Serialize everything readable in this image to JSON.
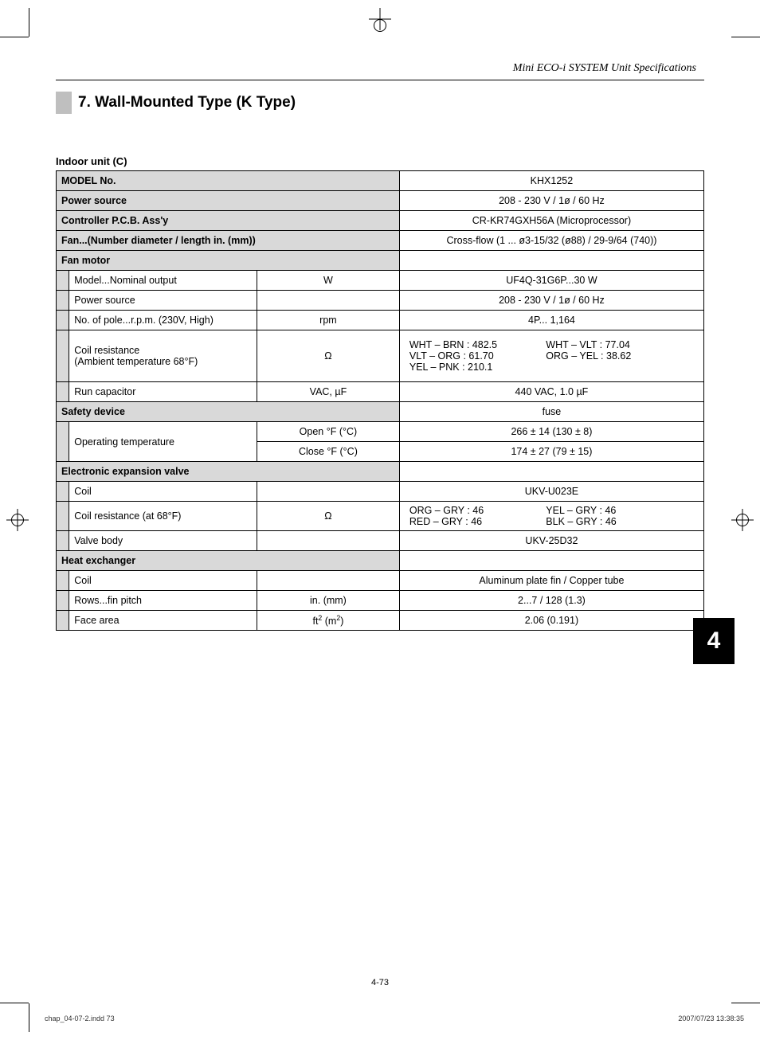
{
  "header": {
    "running_head": "Mini ECO-i SYSTEM Unit Specifications",
    "section_title": "7. Wall-Mounted Type (K Type)"
  },
  "subhead": "Indoor unit (C)",
  "table": {
    "columns": [
      "label",
      "unit",
      "value"
    ],
    "col_widths_pct": [
      38,
      11,
      51
    ],
    "rows": [
      {
        "type": "header",
        "label": "MODEL No.",
        "value": "KHX1252"
      },
      {
        "type": "header",
        "label": "Power source",
        "value": "208 - 230 V / 1ø / 60 Hz"
      },
      {
        "type": "header",
        "label": "Controller P.C.B. Ass'y",
        "value": "CR-KR74GXH56A (Microprocessor)"
      },
      {
        "type": "header",
        "label": "Fan...(Number diameter / length   in. (mm))",
        "value": "Cross-flow (1 ... ø3-15/32 (ø88) / 29-9/64 (740))"
      },
      {
        "type": "header",
        "label": "Fan motor",
        "value": ""
      },
      {
        "type": "sub",
        "label": "Model...Nominal output",
        "unit": "W",
        "value": "UF4Q-31G6P...30 W"
      },
      {
        "type": "sub",
        "label": "Power source",
        "unit": "",
        "value": "208 - 230 V / 1ø / 60 Hz"
      },
      {
        "type": "sub",
        "label": "No. of pole...r.p.m. (230V, High)",
        "unit": "rpm",
        "value": "4P... 1,164"
      },
      {
        "type": "sub",
        "label": "Coil resistance\n(Ambient temperature 68°F)",
        "unit": "Ω",
        "coil_pairs": [
          "WHT  –  BRN   :   482.5",
          "WHT  –  VLT    :   77.04",
          "VLT    –  ORG  :   61.70",
          "ORG  –  YEL   :   38.62",
          "YEL   –   PNK   :   210.1",
          ""
        ]
      },
      {
        "type": "sub",
        "label": "Run capacitor",
        "unit": "VAC, µF",
        "value": "440 VAC, 1.0 µF"
      },
      {
        "type": "header",
        "label": "Safety device",
        "value": "fuse"
      },
      {
        "type": "sub_double",
        "label": "Operating temperature",
        "unit1": "Open °F (°C)",
        "value1": "266 ± 14 (130 ± 8)",
        "unit2": "Close °F (°C)",
        "value2": "174 ± 27 (79 ± 15)"
      },
      {
        "type": "header",
        "label": "Electronic expansion valve",
        "value": ""
      },
      {
        "type": "sub",
        "label": "Coil",
        "unit": "",
        "value": "UKV-U023E"
      },
      {
        "type": "sub",
        "label": "Coil resistance (at 68°F)",
        "unit": "Ω",
        "coil_pairs": [
          "ORG  –  GRY   :   46",
          "YEL    –   GRY   :   46",
          "RED   –   GRY   :   46",
          "BLK    –   GRY   :   46"
        ]
      },
      {
        "type": "sub",
        "label": "Valve body",
        "unit": "",
        "value": "UKV-25D32"
      },
      {
        "type": "header",
        "label": "Heat exchanger",
        "value": ""
      },
      {
        "type": "sub",
        "label": "Coil",
        "unit": "",
        "value": "Aluminum plate fin / Copper tube"
      },
      {
        "type": "sub",
        "label": "Rows...fin pitch",
        "unit": "in. (mm)",
        "value": "2...7 / 128 (1.3)"
      },
      {
        "type": "sub",
        "label": "Face area",
        "unit_html": "ft² (m²)",
        "value": "2.06 (0.191)"
      }
    ]
  },
  "side_tab": "4",
  "footer": {
    "page_number": "4-73",
    "file": "chap_04-07-2.indd   73",
    "timestamp": "2007/07/23   13:38:35"
  },
  "colors": {
    "header_bg": "#d9d9d9",
    "gray_block": "#bfbfbf",
    "text": "#000000",
    "bg": "#ffffff"
  },
  "typography": {
    "body_fontsize_pt": 9.5,
    "title_fontsize_pt": 14,
    "running_head_family": "Times New Roman italic"
  }
}
